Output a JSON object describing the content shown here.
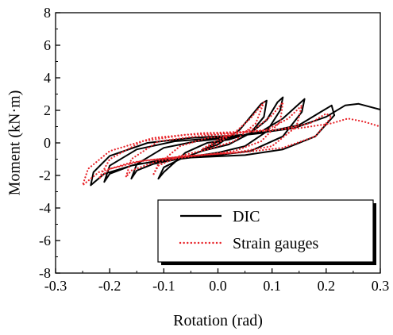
{
  "chart_data": {
    "type": "line",
    "title": "",
    "xlabel": "Rotation (rad)",
    "ylabel": "Moment (kN·m)",
    "xlim": [
      -0.3,
      0.3
    ],
    "ylim": [
      -8,
      8
    ],
    "xticks": [
      -0.3,
      -0.2,
      -0.1,
      0.0,
      0.1,
      0.2,
      0.3
    ],
    "xtick_labels": [
      "-0.3",
      "-0.2",
      "-0.1",
      "0.0",
      "0.1",
      "0.2",
      "0.3"
    ],
    "yticks": [
      -8,
      -6,
      -4,
      -2,
      0,
      2,
      4,
      6,
      8
    ],
    "ytick_labels": [
      "-8",
      "-6",
      "-4",
      "-2",
      "0",
      "2",
      "4",
      "6",
      "8"
    ],
    "grid": false,
    "legend_position": "bottom-right",
    "series": [
      {
        "name": "DIC",
        "color": "#000000",
        "style": "solid",
        "points": [
          [
            0.0,
            0.0
          ],
          [
            0.01,
            0.2
          ],
          [
            0.02,
            0.4
          ],
          [
            0.0,
            0.1
          ],
          [
            -0.02,
            -0.3
          ],
          [
            -0.03,
            -0.45
          ],
          [
            0.0,
            -0.1
          ],
          [
            0.02,
            0.35
          ],
          [
            0.04,
            0.8
          ],
          [
            0.06,
            1.6
          ],
          [
            0.08,
            2.4
          ],
          [
            0.09,
            2.6
          ],
          [
            0.085,
            1.6
          ],
          [
            0.06,
            0.6
          ],
          [
            0.02,
            -0.1
          ],
          [
            -0.03,
            -0.5
          ],
          [
            -0.07,
            -1.0
          ],
          [
            -0.1,
            -1.5
          ],
          [
            -0.11,
            -2.2
          ],
          [
            -0.1,
            -1.8
          ],
          [
            -0.06,
            -0.6
          ],
          [
            -0.02,
            0.0
          ],
          [
            0.02,
            0.2
          ],
          [
            0.06,
            0.6
          ],
          [
            0.09,
            1.4
          ],
          [
            0.11,
            2.5
          ],
          [
            0.12,
            2.8
          ],
          [
            0.115,
            2.0
          ],
          [
            0.09,
            0.7
          ],
          [
            0.05,
            -0.2
          ],
          [
            0.0,
            -0.6
          ],
          [
            -0.06,
            -0.9
          ],
          [
            -0.12,
            -1.3
          ],
          [
            -0.15,
            -1.7
          ],
          [
            -0.16,
            -2.2
          ],
          [
            -0.15,
            -1.3
          ],
          [
            -0.1,
            -0.3
          ],
          [
            -0.04,
            0.1
          ],
          [
            0.02,
            0.3
          ],
          [
            0.08,
            0.7
          ],
          [
            0.12,
            1.5
          ],
          [
            0.15,
            2.4
          ],
          [
            0.16,
            2.7
          ],
          [
            0.155,
            1.9
          ],
          [
            0.12,
            0.4
          ],
          [
            0.06,
            -0.5
          ],
          [
            0.0,
            -0.75
          ],
          [
            -0.08,
            -0.9
          ],
          [
            -0.16,
            -1.4
          ],
          [
            -0.2,
            -1.9
          ],
          [
            -0.21,
            -2.4
          ],
          [
            -0.2,
            -1.4
          ],
          [
            -0.15,
            -0.4
          ],
          [
            -0.08,
            0.1
          ],
          [
            0.0,
            0.3
          ],
          [
            0.08,
            0.6
          ],
          [
            0.15,
            1.1
          ],
          [
            0.19,
            1.9
          ],
          [
            0.21,
            2.3
          ],
          [
            0.215,
            1.7
          ],
          [
            0.18,
            0.4
          ],
          [
            0.12,
            -0.4
          ],
          [
            0.05,
            -0.75
          ],
          [
            -0.05,
            -0.9
          ],
          [
            -0.15,
            -1.3
          ],
          [
            -0.21,
            -1.9
          ],
          [
            -0.235,
            -2.6
          ],
          [
            -0.23,
            -1.8
          ],
          [
            -0.2,
            -0.8
          ],
          [
            -0.13,
            0.0
          ],
          [
            -0.05,
            0.3
          ],
          [
            0.05,
            0.5
          ],
          [
            0.14,
            0.9
          ],
          [
            0.2,
            1.6
          ],
          [
            0.235,
            2.3
          ],
          [
            0.26,
            2.4
          ],
          [
            0.3,
            2.05
          ]
        ]
      },
      {
        "name": "Strain gauges",
        "color": "#e8242a",
        "style": "dotted",
        "points": [
          [
            0.0,
            0.0
          ],
          [
            0.02,
            0.5
          ],
          [
            0.0,
            0.2
          ],
          [
            -0.03,
            -0.4
          ],
          [
            0.0,
            0.0
          ],
          [
            0.03,
            0.6
          ],
          [
            0.06,
            1.5
          ],
          [
            0.08,
            2.3
          ],
          [
            0.085,
            2.5
          ],
          [
            0.07,
            1.2
          ],
          [
            0.03,
            0.1
          ],
          [
            -0.02,
            -0.4
          ],
          [
            -0.07,
            -0.8
          ],
          [
            -0.11,
            -1.4
          ],
          [
            -0.12,
            -2.0
          ],
          [
            -0.11,
            -1.3
          ],
          [
            -0.07,
            -0.2
          ],
          [
            -0.02,
            0.3
          ],
          [
            0.03,
            0.5
          ],
          [
            0.07,
            0.9
          ],
          [
            0.1,
            1.7
          ],
          [
            0.12,
            2.5
          ],
          [
            0.115,
            1.3
          ],
          [
            0.08,
            0.1
          ],
          [
            0.03,
            -0.5
          ],
          [
            -0.04,
            -0.8
          ],
          [
            -0.11,
            -1.1
          ],
          [
            -0.16,
            -1.7
          ],
          [
            -0.17,
            -2.1
          ],
          [
            -0.16,
            -1.0
          ],
          [
            -0.11,
            0.1
          ],
          [
            -0.04,
            0.4
          ],
          [
            0.03,
            0.6
          ],
          [
            0.09,
            0.8
          ],
          [
            0.13,
            1.5
          ],
          [
            0.155,
            2.3
          ],
          [
            0.145,
            1.0
          ],
          [
            0.1,
            -0.2
          ],
          [
            0.03,
            -0.6
          ],
          [
            -0.05,
            -0.8
          ],
          [
            -0.14,
            -1.1
          ],
          [
            -0.2,
            -1.6
          ],
          [
            -0.22,
            -2.2
          ],
          [
            -0.2,
            -1.0
          ],
          [
            -0.14,
            0.1
          ],
          [
            -0.06,
            0.5
          ],
          [
            0.03,
            0.6
          ],
          [
            0.11,
            0.8
          ],
          [
            0.17,
            1.2
          ],
          [
            0.2,
            1.8
          ],
          [
            0.21,
            1.6
          ],
          [
            0.18,
            0.4
          ],
          [
            0.12,
            -0.3
          ],
          [
            0.04,
            -0.6
          ],
          [
            -0.06,
            -0.8
          ],
          [
            -0.16,
            -1.2
          ],
          [
            -0.22,
            -1.8
          ],
          [
            -0.25,
            -2.6
          ],
          [
            -0.24,
            -1.6
          ],
          [
            -0.2,
            -0.5
          ],
          [
            -0.12,
            0.3
          ],
          [
            -0.03,
            0.6
          ],
          [
            0.06,
            0.7
          ],
          [
            0.15,
            0.9
          ],
          [
            0.21,
            1.2
          ],
          [
            0.24,
            1.5
          ],
          [
            0.27,
            1.3
          ],
          [
            0.3,
            1.0
          ]
        ]
      }
    ]
  }
}
